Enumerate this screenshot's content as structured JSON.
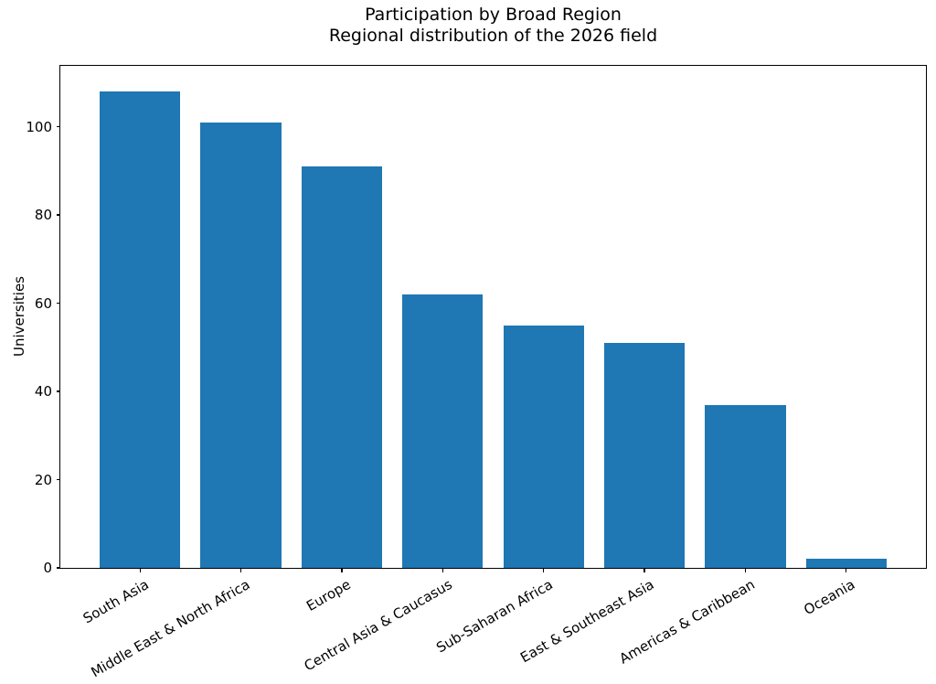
{
  "chart_data": {
    "type": "bar",
    "title": "Participation by Broad Region",
    "subtitle": "Regional distribution of the 2026 field",
    "categories": [
      "South Asia",
      "Middle East & North Africa",
      "Europe",
      "Central Asia & Caucasus",
      "Sub-Saharan Africa",
      "East & Southeast Asia",
      "Americas & Caribbean",
      "Oceania"
    ],
    "values": [
      108,
      101,
      91,
      62,
      55,
      51,
      37,
      2
    ],
    "xlabel": "",
    "ylabel": "Universities",
    "yticks": [
      0,
      20,
      40,
      60,
      80,
      100
    ],
    "ylim": [
      0,
      113.8
    ],
    "xlim": [
      -0.79,
      7.79
    ],
    "bar_width": 0.8,
    "x_tick_rotation_deg": 30,
    "grid": false,
    "legend": null,
    "colors": {
      "bar": "#1f77b4",
      "text": "#000000",
      "spine": "#000000",
      "background": "#ffffff"
    }
  }
}
